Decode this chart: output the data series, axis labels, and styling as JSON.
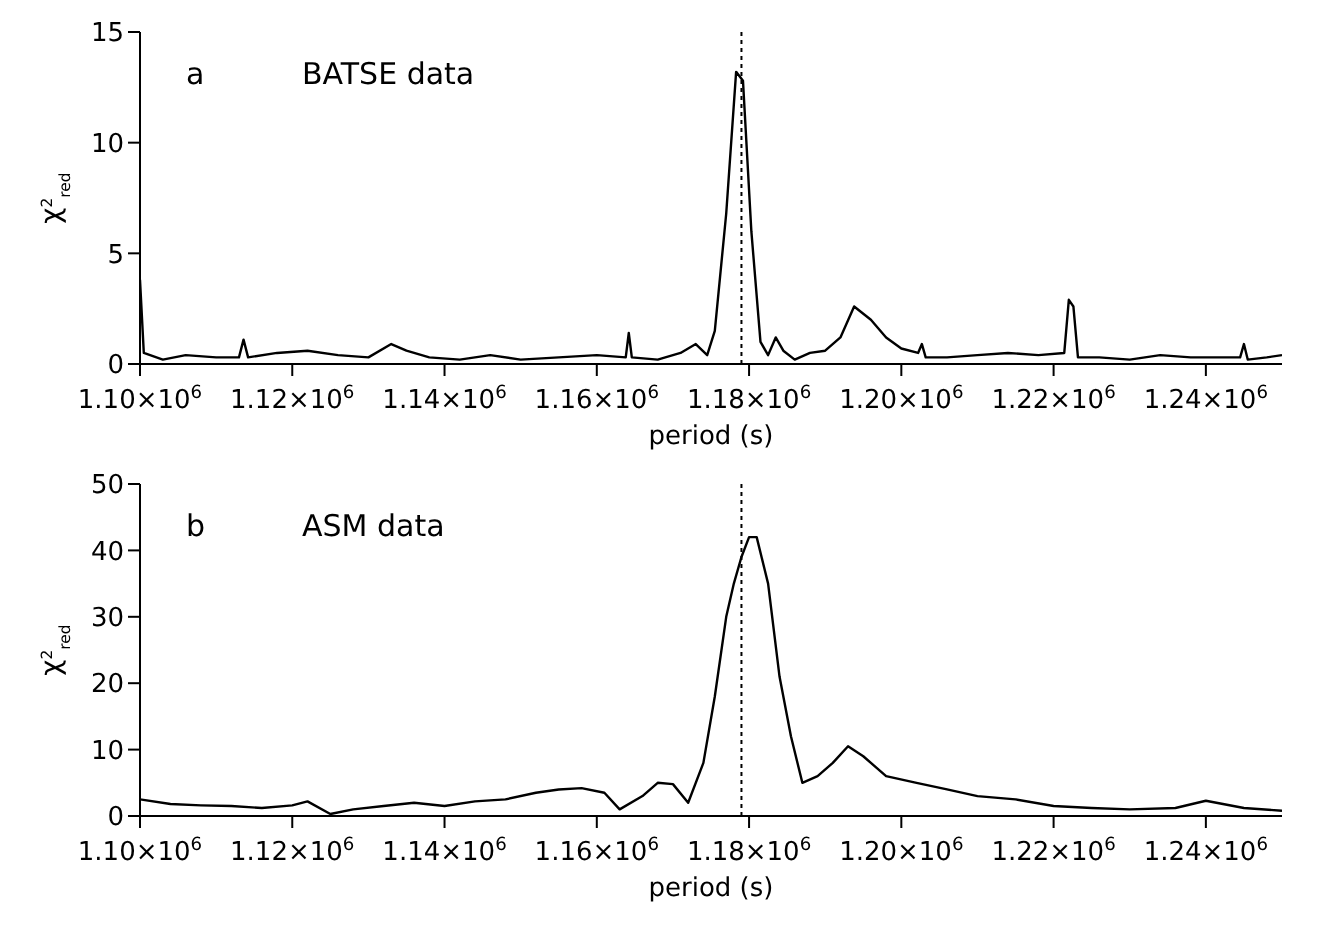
{
  "chart_data": [
    {
      "type": "line",
      "annotations": [
        "a",
        "BATSE data"
      ],
      "xlabel": "period (s)",
      "ylabel": "χ$^{2}$$_{red}$",
      "xlim": [
        1100000,
        1250000
      ],
      "xticks": [
        {
          "value": 1100000,
          "label": "1.10×10$^{6}$"
        },
        {
          "value": 1120000,
          "label": "1.12×10$^{6}$"
        },
        {
          "value": 1140000,
          "label": "1.14×10$^{6}$"
        },
        {
          "value": 1160000,
          "label": "1.16×10$^{6}$"
        },
        {
          "value": 1180000,
          "label": "1.18×10$^{6}$"
        },
        {
          "value": 1200000,
          "label": "1.20×10$^{6}$"
        },
        {
          "value": 1220000,
          "label": "1.22×10$^{6}$"
        },
        {
          "value": 1240000,
          "label": "1.24×10$^{6}$"
        }
      ],
      "ylim": [
        0,
        15
      ],
      "yticks": [
        0,
        5,
        10,
        15
      ],
      "grid": false,
      "legend": false,
      "marker": "none",
      "line_style": "solid",
      "ref_lines": [
        {
          "axis": "x",
          "value": 1179000,
          "color": "#000000",
          "line_style": "dotted"
        }
      ],
      "series": [
        {
          "color": "#000000",
          "x": [
            1100000,
            1100500,
            1103000,
            1106000,
            1110000,
            1113000,
            1113600,
            1114200,
            1118000,
            1122000,
            1126000,
            1130000,
            1133000,
            1135000,
            1138000,
            1142000,
            1146000,
            1150000,
            1155000,
            1160000,
            1163800,
            1164200,
            1164600,
            1168000,
            1171000,
            1173000,
            1174500,
            1175500,
            1177000,
            1178300,
            1179200,
            1180300,
            1181500,
            1182500,
            1183500,
            1184500,
            1186000,
            1188000,
            1190000,
            1192000,
            1193800,
            1196000,
            1198000,
            1200000,
            1202200,
            1202700,
            1203200,
            1206000,
            1210000,
            1214000,
            1218000,
            1221400,
            1222000,
            1222600,
            1223200,
            1226000,
            1230000,
            1234000,
            1238000,
            1241000,
            1244500,
            1245000,
            1245500,
            1248000,
            1250000
          ],
          "values": [
            3.8,
            0.5,
            0.2,
            0.4,
            0.3,
            0.3,
            1.1,
            0.3,
            0.5,
            0.6,
            0.4,
            0.3,
            0.9,
            0.6,
            0.3,
            0.2,
            0.4,
            0.2,
            0.3,
            0.4,
            0.3,
            1.4,
            0.3,
            0.2,
            0.5,
            0.9,
            0.4,
            1.5,
            6.8,
            13.2,
            12.8,
            6,
            1.0,
            0.4,
            1.2,
            0.6,
            0.2,
            0.5,
            0.6,
            1.2,
            2.6,
            2.0,
            1.2,
            0.7,
            0.5,
            0.9,
            0.3,
            0.3,
            0.4,
            0.5,
            0.4,
            0.5,
            2.9,
            2.6,
            0.3,
            0.3,
            0.2,
            0.4,
            0.3,
            0.3,
            0.3,
            0.9,
            0.2,
            0.3,
            0.4
          ]
        }
      ]
    },
    {
      "type": "line",
      "annotations": [
        "b",
        "ASM data"
      ],
      "xlabel": "period (s)",
      "ylabel": "χ$^{2}$$_{red}$",
      "xlim": [
        1100000,
        1250000
      ],
      "xticks": [
        {
          "value": 1100000,
          "label": "1.10×10$^{6}$"
        },
        {
          "value": 1120000,
          "label": "1.12×10$^{6}$"
        },
        {
          "value": 1140000,
          "label": "1.14×10$^{6}$"
        },
        {
          "value": 1160000,
          "label": "1.16×10$^{6}$"
        },
        {
          "value": 1180000,
          "label": "1.18×10$^{6}$"
        },
        {
          "value": 1200000,
          "label": "1.20×10$^{6}$"
        },
        {
          "value": 1220000,
          "label": "1.22×10$^{6}$"
        },
        {
          "value": 1240000,
          "label": "1.24×10$^{6}$"
        }
      ],
      "ylim": [
        0,
        50
      ],
      "yticks": [
        0,
        10,
        20,
        30,
        40,
        50
      ],
      "grid": false,
      "legend": false,
      "marker": "none",
      "line_style": "solid",
      "ref_lines": [
        {
          "axis": "x",
          "value": 1179000,
          "color": "#000000",
          "line_style": "dotted"
        }
      ],
      "series": [
        {
          "color": "#000000",
          "x": [
            1100000,
            1104000,
            1108000,
            1112000,
            1116000,
            1120000,
            1122000,
            1125000,
            1128000,
            1132000,
            1136000,
            1140000,
            1144000,
            1148000,
            1152000,
            1155000,
            1158000,
            1161000,
            1163000,
            1166000,
            1168000,
            1170000,
            1172000,
            1174000,
            1175500,
            1177000,
            1178000,
            1179000,
            1180000,
            1181000,
            1182500,
            1184000,
            1185500,
            1187000,
            1189000,
            1191000,
            1193000,
            1195000,
            1198000,
            1202000,
            1206000,
            1210000,
            1215000,
            1220000,
            1225000,
            1230000,
            1236000,
            1240000,
            1245000,
            1250000
          ],
          "values": [
            2.5,
            1.8,
            1.6,
            1.5,
            1.2,
            1.6,
            2.2,
            0.3,
            1,
            1.5,
            2,
            1.5,
            2.2,
            2.5,
            3.5,
            4,
            4.2,
            3.5,
            1,
            3,
            5,
            4.8,
            2,
            8,
            18,
            30,
            35,
            39,
            42,
            42,
            35,
            21,
            12,
            5,
            6,
            8,
            10.5,
            9,
            6,
            5,
            4,
            3,
            2.5,
            1.5,
            1.2,
            1,
            1.2,
            2.3,
            1.2,
            0.8
          ]
        }
      ]
    }
  ]
}
